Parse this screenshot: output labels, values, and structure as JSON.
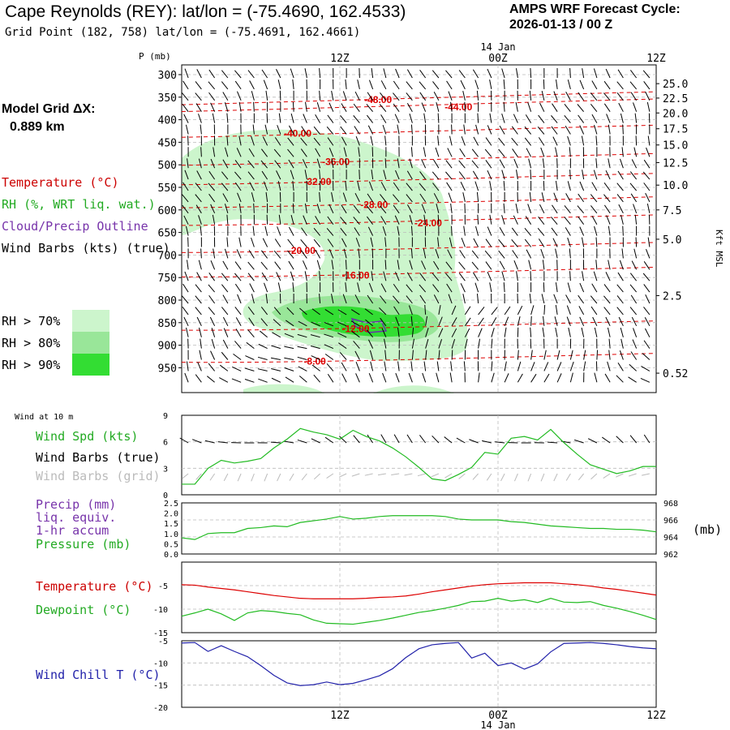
{
  "header": {
    "title": "Cape Reynolds (REY):  lat/lon = (-75.4690, 162.4533)",
    "subtitle": "Grid Point (182, 758) lat/lon = (-75.4691, 162.4661)",
    "cycle_label": "AMPS WRF Forecast Cycle:",
    "cycle_value": "2026-01-13 / 00  Z"
  },
  "legend": {
    "model_grid": "Model Grid ΔX:",
    "model_grid_value": "0.889 km",
    "temperature": "Temperature (°C)",
    "rh": "RH (%, WRT liq. wat.)",
    "cloud": "Cloud/Precip Outline",
    "wind": "Wind Barbs (kts) (true)",
    "rh70": "RH > 70%",
    "rh80": "RH > 80%",
    "rh90": "RH > 90%",
    "colors": {
      "rh70": "#ccf5cc",
      "rh80": "#99e699",
      "rh90": "#33dd33",
      "temp": "#dd0000",
      "cloud": "#6633aa"
    }
  },
  "time_axis": {
    "top_date": "14 Jan",
    "bottom_date": "14 Jan",
    "ticks": [
      "12Z",
      "00Z",
      "12Z"
    ]
  },
  "chart_data": [
    {
      "type": "heatmap",
      "name": "vertical-profile",
      "ylabel": "P (mb)",
      "pressure_ticks": [
        "300",
        "350",
        "400",
        "450",
        "500",
        "550",
        "600",
        "650",
        "700",
        "750",
        "800",
        "850",
        "900",
        "950"
      ],
      "right_axis_label": "Kft MSL",
      "height_ticks": [
        "25.0",
        "22.5",
        "20.0",
        "17.5",
        "15.0",
        "12.5",
        "10.0",
        "7.5",
        "5.0",
        "2.5",
        "0.52"
      ],
      "height_tick_pressures": [
        320,
        352,
        385,
        420,
        456,
        495,
        545,
        600,
        665,
        790,
        962
      ],
      "isotherm_labels": [
        {
          "t": 14.9,
          "p": 356,
          "label": "-48.00"
        },
        {
          "t": 21.0,
          "p": 372,
          "label": "-44.00"
        },
        {
          "t": 8.8,
          "p": 430,
          "label": "-40.00"
        },
        {
          "t": 11.7,
          "p": 493,
          "label": "-36.00"
        },
        {
          "t": 10.3,
          "p": 537,
          "label": "-32.00"
        },
        {
          "t": 14.6,
          "p": 589,
          "label": "-28.00"
        },
        {
          "t": 18.7,
          "p": 629,
          "label": "-24.00"
        },
        {
          "t": 9.1,
          "p": 690,
          "label": "-20.00"
        },
        {
          "t": 13.2,
          "p": 745,
          "label": "-16.00"
        },
        {
          "t": 13.2,
          "p": 864,
          "label": "-12.00"
        },
        {
          "t": 10.1,
          "p": 936,
          "label": "-8.00"
        }
      ]
    },
    {
      "type": "line",
      "name": "wind",
      "title": "Wind at 10 m",
      "series_label": "Wind Spd (kts)",
      "barbs_true_label": "Wind Barbs (true)",
      "barbs_grid_label": "Wind Barbs (grid)",
      "y_ticks": [
        "0",
        "3",
        "6",
        "9"
      ],
      "ylim": [
        0,
        9
      ],
      "x": [
        0,
        1,
        2,
        3,
        4,
        5,
        6,
        7,
        8,
        9,
        10,
        11,
        12,
        13,
        14,
        15,
        16,
        17,
        18,
        19,
        20,
        21,
        22,
        23,
        24,
        25,
        26,
        27,
        28,
        29,
        30,
        31,
        32,
        33,
        34,
        35,
        36
      ],
      "values": [
        1.2,
        1.2,
        3.0,
        3.9,
        3.6,
        3.8,
        4.1,
        5.3,
        6.3,
        7.5,
        7.1,
        6.8,
        6.3,
        7.3,
        6.6,
        6.1,
        5.3,
        4.3,
        3.1,
        1.8,
        1.6,
        2.3,
        3.1,
        4.8,
        4.6,
        6.4,
        6.6,
        6.2,
        7.4,
        5.9,
        4.6,
        3.4,
        2.9,
        2.4,
        2.7,
        3.2,
        3.2
      ]
    },
    {
      "type": "line",
      "name": "pressure",
      "precip_label": "Precip (mm)",
      "precip_sub1": "liq. equiv.",
      "precip_sub2": "1-hr accum",
      "pressure_label": "Pressure (mb)",
      "right_unit": "(mb)",
      "left_ticks": [
        "0.0",
        "0.5",
        "1.0",
        "1.5",
        "2.0",
        "2.5"
      ],
      "right_ticks": [
        "962",
        "964",
        "966",
        "968"
      ],
      "ylim": [
        962,
        968
      ],
      "x": [
        0,
        1,
        2,
        3,
        4,
        5,
        6,
        7,
        8,
        9,
        10,
        11,
        12,
        13,
        14,
        15,
        16,
        17,
        18,
        19,
        20,
        21,
        22,
        23,
        24,
        25,
        26,
        27,
        28,
        29,
        30,
        31,
        32,
        33,
        34,
        35,
        36
      ],
      "values": [
        963.9,
        963.7,
        964.4,
        964.5,
        964.5,
        965.0,
        965.1,
        965.3,
        965.2,
        965.7,
        965.9,
        966.1,
        966.4,
        966.1,
        966.2,
        966.4,
        966.5,
        966.5,
        966.5,
        966.5,
        966.4,
        966.1,
        966.0,
        966.0,
        966.0,
        965.8,
        965.7,
        965.5,
        965.3,
        965.2,
        965.1,
        965.0,
        965.0,
        964.9,
        964.9,
        964.8,
        964.6
      ]
    },
    {
      "type": "line",
      "name": "temperature",
      "temp_label": "Temperature (°C)",
      "dew_label": "Dewpoint (°C)",
      "y_ticks": [
        "-5",
        "-10",
        "-15"
      ],
      "ylim": [
        -15,
        0
      ],
      "x": [
        0,
        1,
        2,
        3,
        4,
        5,
        6,
        7,
        8,
        9,
        10,
        11,
        12,
        13,
        14,
        15,
        16,
        17,
        18,
        19,
        20,
        21,
        22,
        23,
        24,
        25,
        26,
        27,
        28,
        29,
        30,
        31,
        32,
        33,
        34,
        35,
        36
      ],
      "series": [
        {
          "name": "Temperature",
          "color": "#dd0000",
          "values": [
            -4.8,
            -4.9,
            -5.3,
            -5.6,
            -5.9,
            -6.3,
            -6.7,
            -7.1,
            -7.4,
            -7.7,
            -7.8,
            -7.8,
            -7.8,
            -7.8,
            -7.7,
            -7.5,
            -7.4,
            -7.2,
            -6.8,
            -6.3,
            -5.9,
            -5.5,
            -5.1,
            -4.8,
            -4.6,
            -4.5,
            -4.4,
            -4.4,
            -4.4,
            -4.6,
            -4.8,
            -5.1,
            -5.5,
            -5.8,
            -6.2,
            -6.6,
            -7.0
          ]
        },
        {
          "name": "Dewpoint",
          "color": "#22bb22",
          "values": [
            -11.5,
            -10.8,
            -10.0,
            -11.0,
            -12.4,
            -10.8,
            -10.3,
            -10.5,
            -10.9,
            -11.2,
            -12.3,
            -13.0,
            -13.1,
            -13.2,
            -12.8,
            -12.4,
            -11.9,
            -11.3,
            -10.7,
            -10.3,
            -9.8,
            -9.2,
            -8.4,
            -8.3,
            -7.7,
            -8.3,
            -8.0,
            -8.6,
            -7.7,
            -8.5,
            -8.6,
            -8.4,
            -9.2,
            -9.8,
            -10.5,
            -11.3,
            -12.2
          ]
        }
      ]
    },
    {
      "type": "line",
      "name": "wind-chill",
      "label": "Wind Chill T (°C)",
      "y_ticks": [
        "-5",
        "-10",
        "-15",
        "-20"
      ],
      "ylim": [
        -20,
        -5
      ],
      "x": [
        0,
        1,
        2,
        3,
        4,
        5,
        6,
        7,
        8,
        9,
        10,
        11,
        12,
        13,
        14,
        15,
        16,
        17,
        18,
        19,
        20,
        21,
        22,
        23,
        24,
        25,
        26,
        27,
        28,
        29,
        30,
        31,
        32,
        33,
        34,
        35,
        36
      ],
      "values": [
        -5.5,
        -5.4,
        -7.4,
        -6.1,
        -7.4,
        -8.6,
        -10.6,
        -12.8,
        -14.5,
        -15.1,
        -14.9,
        -14.3,
        -14.9,
        -14.6,
        -13.8,
        -12.9,
        -11.3,
        -8.8,
        -6.8,
        -5.9,
        -5.6,
        -5.4,
        -8.9,
        -7.8,
        -10.6,
        -10.0,
        -11.4,
        -10.2,
        -7.5,
        -5.6,
        -5.5,
        -5.4,
        -5.6,
        -5.9,
        -6.3,
        -6.6,
        -6.8
      ]
    }
  ]
}
